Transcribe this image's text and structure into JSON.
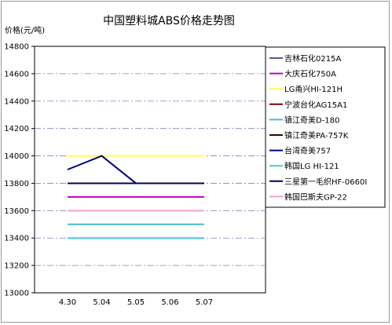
{
  "chart_data": {
    "type": "line",
    "title": "中国塑料城ABS价格走势图",
    "ylabel": "价格(元/吨)",
    "xlabel": "",
    "categories": [
      "4.30",
      "5.04",
      "5.05",
      "5.06",
      "5.07"
    ],
    "ylim": [
      13000,
      14800
    ],
    "yticks": [
      13000,
      13200,
      13400,
      13600,
      13800,
      14000,
      14200,
      14400,
      14600,
      14800
    ],
    "grid": "horizontal-dashdot",
    "legend_position": "right",
    "series": [
      {
        "name": "吉林石化0215A",
        "color": "#5a5a8c",
        "values": [
          null,
          null,
          null,
          null,
          null
        ]
      },
      {
        "name": "大庆石化750A",
        "color": "#c000c0",
        "values": [
          13700,
          13700,
          13700,
          13700,
          13700
        ]
      },
      {
        "name": "LG甬兴HI-121H",
        "color": "#ffff40",
        "values": [
          14000,
          14000,
          14000,
          14000,
          14000
        ]
      },
      {
        "name": "宁波台化AG15A1",
        "color": "#800000",
        "values": [
          null,
          null,
          null,
          null,
          null
        ]
      },
      {
        "name": "镇江奇美D-180",
        "color": "#40c0c0",
        "values": [
          13500,
          13500,
          13500,
          13500,
          13500
        ]
      },
      {
        "name": "镇江奇美PA-757K",
        "color": "#400000",
        "values": [
          13800,
          13800,
          13800,
          13800,
          13800
        ]
      },
      {
        "name": "台湾奇美757",
        "color": "#000080",
        "values": [
          13900,
          14000,
          13800,
          13800,
          13800
        ]
      },
      {
        "name": "韩国LG HI-121",
        "color": "#40c8e8",
        "values": [
          13400,
          13400,
          13400,
          13400,
          13400
        ]
      },
      {
        "name": "三星第一毛织HF-0660I",
        "color": "#000060",
        "values": [
          13800,
          13800,
          13800,
          13800,
          13800
        ]
      },
      {
        "name": "韩国巴斯夫GP-22",
        "color": "#f0a0d0",
        "values": [
          13600,
          13600,
          13600,
          13600,
          13600
        ]
      }
    ]
  }
}
